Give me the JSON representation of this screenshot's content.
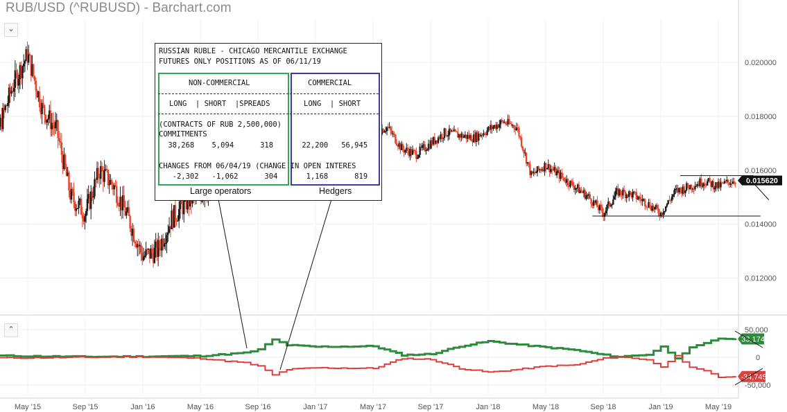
{
  "header": {
    "title": "RUB/USD (^RUBUSD) - Barchart.com",
    "collapse_top_icon": "chevron-down-icon",
    "collapse_bottom_icon": "chevron-up-icon"
  },
  "colors": {
    "candle_up": "#1a1a1a",
    "candle_down": "#e8452c",
    "cot_noncommercial": "#2e8b3e",
    "cot_commercial": "#e03a3a",
    "badge_price": "#111111",
    "badge_green": "#2e8b3e",
    "badge_red": "#d94040"
  },
  "cot_box": {
    "line1": "RUSSIAN RUBLE - CHICAGO MERCANTILE EXCHANGE",
    "line2": "FUTURES ONLY POSITIONS AS OF 06/11/19",
    "noncommercial_header": "NON-COMMERCIAL",
    "commercial_header": "COMMERCIAL",
    "noncommercial_cols": "LONG  | SHORT  |SPREADS",
    "commercial_cols": "LONG  | SHORT",
    "contracts_line": "(CONTRACTS OF RUB 2,500,000)",
    "commitments_label": "COMMITMENTS",
    "commitments_nc": " 38,268    5,094      318",
    "commitments_c": " 22,200   56,945",
    "changes_line": "CHANGES FROM 06/04/19 (CHANGE IN OPEN INTERES",
    "changes_nc": "  -2,302   -1,062      304",
    "changes_c": "  1,168      819",
    "large_operators_label": "Large operators",
    "hedgers_label": "Hedgers"
  },
  "chart_data": [
    {
      "type": "candlestick",
      "title": "RUB/USD (^RUBUSD)",
      "x_ticks": [
        "May '15",
        "Sep '15",
        "Jan '16",
        "May '16",
        "Sep '16",
        "Jan '17",
        "May '17",
        "Sep '17",
        "Jan '18",
        "May '18",
        "Sep '18",
        "Jan '19",
        "May '19"
      ],
      "y_ticks": [
        "0.020000",
        "0.018000",
        "0.016000",
        "0.014000",
        "0.012000"
      ],
      "ylim": [
        0.0107,
        0.0216
      ],
      "last_price": "0.015620",
      "series": [
        {
          "name": "close",
          "x": [
            "Feb '15",
            "Apr '15",
            "May '15",
            "Jun '15",
            "Jul '15",
            "Aug '15",
            "Sep '15",
            "Oct '15",
            "Nov '15",
            "Dec '15",
            "Jan '16",
            "Feb '16",
            "Mar '16",
            "Apr '16",
            "Jun '16",
            "Aug '16",
            "Oct '16",
            "Jan '17",
            "Apr '17",
            "Jun '17",
            "Jul '17",
            "Aug '17",
            "Oct '17",
            "Dec '17",
            "Feb '18",
            "Mar '18",
            "Apr '18",
            "May '18",
            "Jun '18",
            "Aug '18",
            "Sep '18",
            "Oct '18",
            "Nov '18",
            "Dec '18",
            "Jan '19",
            "Feb '19",
            "Mar '19",
            "Apr '19",
            "May '19",
            "Jun '19"
          ],
          "values": [
            0.0159,
            0.0192,
            0.0203,
            0.0183,
            0.0175,
            0.015,
            0.0144,
            0.016,
            0.0154,
            0.0142,
            0.0128,
            0.013,
            0.0142,
            0.0148,
            0.0154,
            0.0156,
            0.016,
            0.0164,
            0.0172,
            0.0176,
            0.0168,
            0.0166,
            0.0174,
            0.0172,
            0.0178,
            0.0176,
            0.0158,
            0.0162,
            0.0158,
            0.015,
            0.0144,
            0.0152,
            0.0151,
            0.0148,
            0.0144,
            0.0152,
            0.0154,
            0.0156,
            0.0154,
            0.01562
          ]
        }
      ],
      "annotations": {
        "resistance": 0.0158,
        "support": 0.0143
      }
    },
    {
      "type": "line",
      "title": "COT positions",
      "y_ticks": [
        "50,000",
        "0",
        "-50,000"
      ],
      "ylim": [
        -70000,
        70000
      ],
      "x": [
        "Feb '15",
        "May '15",
        "Sep '15",
        "Jan '16",
        "May '16",
        "Aug '16",
        "Sep '16",
        "Oct '16",
        "Nov '16",
        "Jan '17",
        "May '17",
        "Jul '17",
        "Sep '17",
        "Nov '17",
        "Jan '18",
        "Mar '18",
        "May '18",
        "Jul '18",
        "Sep '18",
        "Oct '18",
        "Nov '18",
        "Dec '18",
        "Jan '19",
        "Feb '19",
        "Mar '19",
        "Apr '19",
        "May '19",
        "Jun '19"
      ],
      "series": [
        {
          "name": "Non-commercial",
          "values": [
            3000,
            2000,
            1000,
            1500,
            2500,
            8000,
            14000,
            32000,
            22000,
            19000,
            20000,
            4000,
            6000,
            20000,
            29000,
            23000,
            18000,
            13000,
            4000,
            1000,
            3000,
            5000,
            19000,
            -1000,
            17000,
            25000,
            34000,
            33174
          ]
        },
        {
          "name": "Commercial",
          "values": [
            -1000,
            -1000,
            0,
            1000,
            -2000,
            -10000,
            -16000,
            -32000,
            -22000,
            -19000,
            -20000,
            -2000,
            -4000,
            -20000,
            -27000,
            -22000,
            -16000,
            -14000,
            -2000,
            1000,
            -2000,
            -4000,
            -18000,
            4000,
            -19000,
            -25000,
            -36000,
            -34745
          ]
        }
      ],
      "badges": {
        "green": "33,174",
        "red": "-34,745"
      }
    }
  ]
}
